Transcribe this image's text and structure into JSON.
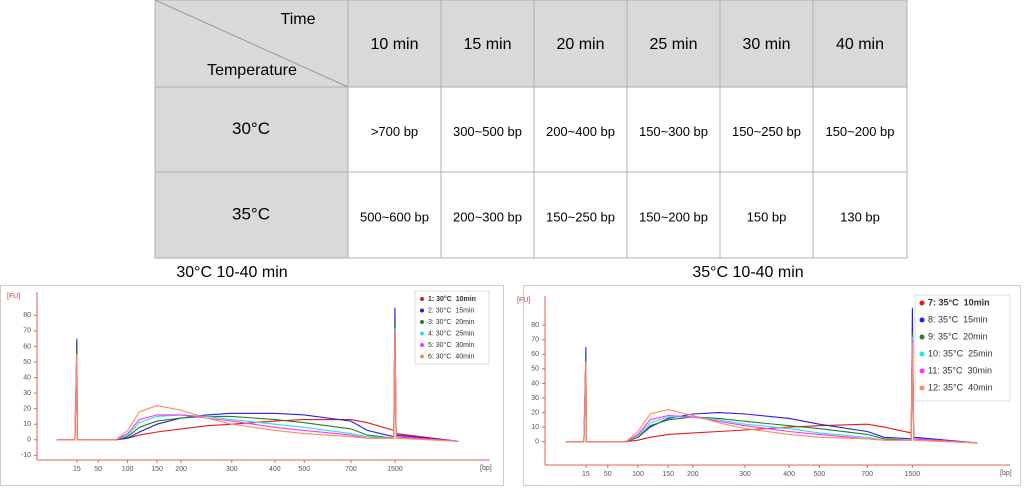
{
  "table": {
    "corner_top": "Time",
    "corner_bottom": "Temperature",
    "columns": [
      "10 min",
      "15 min",
      "20 min",
      "25 min",
      "30 min",
      "40 min"
    ],
    "rows": [
      {
        "label": "30°C",
        "cells": [
          ">700 bp",
          "300~500 bp",
          "200~400 bp",
          "150~300 bp",
          "150~250 bp",
          "150~200 bp"
        ]
      },
      {
        "label": "35°C",
        "cells": [
          "500~600 bp",
          "200~300 bp",
          "150~250 bp",
          "150~200 bp",
          "150 bp",
          "130 bp"
        ]
      }
    ]
  },
  "chart_data": [
    {
      "type": "line",
      "title": "30°C 10-40 min",
      "y_label": "[FU]",
      "x_label": "[bp]",
      "x": [
        10,
        14.5,
        15,
        15.5,
        30,
        50,
        80,
        100,
        120,
        150,
        200,
        250,
        300,
        400,
        500,
        700,
        1000,
        1480,
        1500,
        1520,
        2500
      ],
      "xlim": [
        5,
        3000
      ],
      "xticks": [
        15,
        50,
        100,
        150,
        200,
        300,
        400,
        500,
        700,
        1500
      ],
      "ylim": [
        -13,
        95
      ],
      "yticks": [
        -10,
        0,
        10,
        20,
        30,
        40,
        50,
        60,
        70,
        80
      ],
      "series": [
        {
          "name": "1: 30°C  10min",
          "color": "#e41a1c",
          "values": [
            0,
            0,
            55,
            0,
            0,
            0,
            0,
            1,
            3,
            5,
            7,
            9,
            10,
            12,
            13,
            13,
            11,
            6,
            72,
            4,
            -1
          ]
        },
        {
          "name": "2: 30°C  15min",
          "color": "#2222dd",
          "values": [
            0,
            0,
            65,
            0,
            0,
            0,
            0,
            1,
            5,
            10,
            14,
            16,
            17,
            17,
            16,
            12,
            6,
            2,
            85,
            3,
            -1
          ]
        },
        {
          "name": "3: 30°C  20min",
          "color": "#2a7d2a",
          "values": [
            0,
            0,
            58,
            0,
            0,
            0,
            0,
            2,
            8,
            12,
            14,
            15,
            15,
            13,
            11,
            7,
            3,
            1,
            75,
            2,
            -1
          ]
        },
        {
          "name": "4: 30°C  25min",
          "color": "#33dede",
          "values": [
            0,
            0,
            55,
            0,
            0,
            0,
            0,
            3,
            11,
            15,
            16,
            15,
            13,
            10,
            8,
            4,
            2,
            1,
            72,
            2,
            -1
          ]
        },
        {
          "name": "5: 30°C  30min",
          "color": "#ff33ff",
          "values": [
            0,
            0,
            55,
            0,
            0,
            0,
            0,
            4,
            13,
            16,
            16,
            14,
            12,
            8,
            6,
            3,
            1,
            1,
            70,
            2,
            -1
          ]
        },
        {
          "name": "6: 30°C  40min",
          "color": "#ff8c5a",
          "values": [
            0,
            0,
            55,
            0,
            0,
            0,
            0,
            6,
            18,
            22,
            19,
            14,
            10,
            6,
            4,
            2,
            1,
            1,
            70,
            1,
            -1
          ]
        }
      ]
    },
    {
      "type": "line",
      "title": "35°C 10-40 min",
      "y_label": "[FU]",
      "x_label": "[bp]",
      "x": [
        10,
        14.5,
        15,
        15.5,
        30,
        50,
        80,
        100,
        120,
        150,
        200,
        250,
        300,
        400,
        500,
        700,
        1000,
        1480,
        1500,
        1520,
        2500
      ],
      "xlim": [
        5,
        3000
      ],
      "xticks": [
        15,
        50,
        100,
        150,
        200,
        300,
        400,
        500,
        700,
        1500
      ],
      "ylim": [
        -16,
        100
      ],
      "yticks": [
        0,
        10,
        20,
        30,
        40,
        50,
        60,
        70,
        80
      ],
      "series": [
        {
          "name": "7: 35°C  10min",
          "color": "#e41a1c",
          "values": [
            0,
            0,
            55,
            0,
            0,
            0,
            0,
            1,
            3,
            5,
            6,
            7,
            8,
            10,
            11,
            12,
            10,
            6,
            70,
            3,
            -1
          ]
        },
        {
          "name": "8: 35°C  15min",
          "color": "#2222dd",
          "values": [
            0,
            0,
            65,
            0,
            0,
            0,
            0,
            3,
            10,
            16,
            19,
            20,
            19,
            16,
            12,
            7,
            3,
            2,
            92,
            3,
            -1
          ]
        },
        {
          "name": "9: 35°C  20min",
          "color": "#2a7d2a",
          "values": [
            0,
            0,
            58,
            0,
            0,
            0,
            0,
            3,
            11,
            15,
            17,
            16,
            14,
            11,
            9,
            5,
            2,
            1,
            75,
            2,
            -1
          ]
        },
        {
          "name": "10: 35°C  25min",
          "color": "#33dede",
          "values": [
            0,
            0,
            55,
            0,
            0,
            0,
            0,
            4,
            13,
            17,
            17,
            15,
            12,
            9,
            6,
            3,
            1,
            1,
            72,
            2,
            -1
          ]
        },
        {
          "name": "11: 35°C  30min",
          "color": "#ff33ff",
          "values": [
            0,
            0,
            55,
            0,
            0,
            0,
            0,
            5,
            15,
            18,
            17,
            14,
            11,
            7,
            5,
            2,
            1,
            1,
            70,
            2,
            -1
          ]
        },
        {
          "name": "12: 35°C  40min",
          "color": "#ff8c5a",
          "values": [
            0,
            0,
            55,
            0,
            0,
            0,
            0,
            7,
            19,
            22,
            18,
            13,
            9,
            5,
            3,
            2,
            1,
            1,
            68,
            1,
            -1
          ]
        }
      ]
    }
  ]
}
